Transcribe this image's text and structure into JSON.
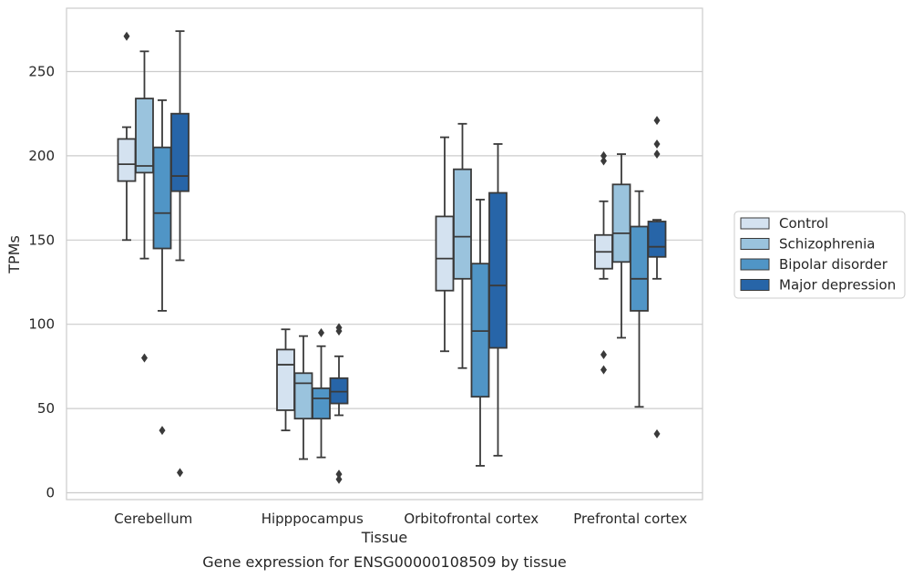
{
  "chart_data": {
    "type": "box",
    "xlabel": "Tissue",
    "ylabel": "TPMs",
    "caption": "Gene expression for ENSG00000108509 by tissue",
    "ylim": [
      -4,
      287
    ],
    "yticks": [
      0,
      50,
      100,
      150,
      200,
      250
    ],
    "grid": "horizontal",
    "legend_position": "right",
    "categories": [
      "Cerebellum",
      "Hipppocampus",
      "Orbitofrontal cortex",
      "Prefrontal cortex"
    ],
    "series": [
      {
        "name": "Control",
        "color": "#d4e2f0",
        "boxes": [
          {
            "whislo": 150,
            "q1": 185,
            "med": 195,
            "q3": 210,
            "whishi": 217,
            "fliers": [
              271
            ]
          },
          {
            "whislo": 37,
            "q1": 49,
            "med": 76,
            "q3": 85,
            "whishi": 97,
            "fliers": []
          },
          {
            "whislo": 84,
            "q1": 120,
            "med": 139,
            "q3": 164,
            "whishi": 211,
            "fliers": []
          },
          {
            "whislo": 127,
            "q1": 133,
            "med": 143,
            "q3": 153,
            "whishi": 173,
            "fliers": [
              200,
              197,
              82,
              73
            ]
          }
        ]
      },
      {
        "name": "Schizophrenia",
        "color": "#9ac3dd",
        "boxes": [
          {
            "whislo": 139,
            "q1": 190,
            "med": 194,
            "q3": 234,
            "whishi": 262,
            "fliers": [
              80
            ]
          },
          {
            "whislo": 20,
            "q1": 44,
            "med": 65,
            "q3": 71,
            "whishi": 93,
            "fliers": []
          },
          {
            "whislo": 74,
            "q1": 127,
            "med": 152,
            "q3": 192,
            "whishi": 219,
            "fliers": []
          },
          {
            "whislo": 92,
            "q1": 137,
            "med": 154,
            "q3": 183,
            "whishi": 201,
            "fliers": []
          }
        ]
      },
      {
        "name": "Bipolar disorder",
        "color": "#5095c6",
        "boxes": [
          {
            "whislo": 108,
            "q1": 145,
            "med": 166,
            "q3": 205,
            "whishi": 233,
            "fliers": [
              37
            ]
          },
          {
            "whislo": 21,
            "q1": 44,
            "med": 56,
            "q3": 62,
            "whishi": 87,
            "fliers": [
              95
            ]
          },
          {
            "whislo": 16,
            "q1": 57,
            "med": 96,
            "q3": 136,
            "whishi": 174,
            "fliers": []
          },
          {
            "whislo": 51,
            "q1": 108,
            "med": 127,
            "q3": 158,
            "whishi": 179,
            "fliers": []
          }
        ]
      },
      {
        "name": "Major depression",
        "color": "#2765a8",
        "boxes": [
          {
            "whislo": 138,
            "q1": 179,
            "med": 188,
            "q3": 225,
            "whishi": 274,
            "fliers": [
              12
            ]
          },
          {
            "whislo": 46,
            "q1": 53,
            "med": 60,
            "q3": 68,
            "whishi": 81,
            "fliers": [
              98,
              96,
              11,
              8
            ]
          },
          {
            "whislo": 22,
            "q1": 86,
            "med": 123,
            "q3": 178,
            "whishi": 207,
            "fliers": []
          },
          {
            "whislo": 127,
            "q1": 140,
            "med": 146,
            "q3": 161,
            "whishi": 162,
            "fliers": [
              221,
              207,
              201,
              35
            ]
          }
        ]
      }
    ]
  }
}
